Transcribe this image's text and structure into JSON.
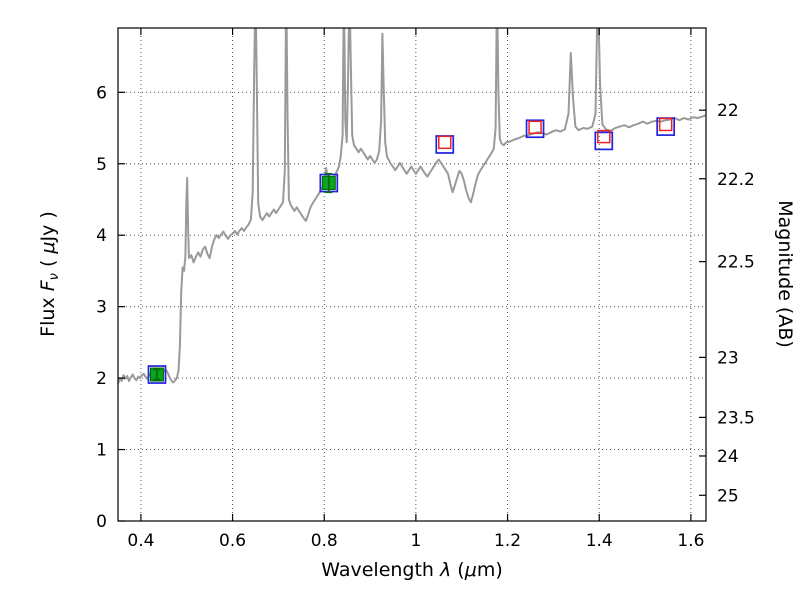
{
  "labels": {
    "xlabel_prefix": "Wavelength  ",
    "xlabel_lambda": "λ",
    "xlabel_open": " (",
    "xlabel_mu": "μ",
    "xlabel_close": "m)",
    "ylabel_prefix": "Flux  ",
    "ylabel_F": "F",
    "ylabel_nu": "ν",
    "ylabel_open": "  ( ",
    "ylabel_mu": "μ",
    "ylabel_close": "Jy )",
    "ylabel_right": "Magnitude (AB)"
  },
  "chart_data": {
    "type": "line+scatter",
    "title": "",
    "xlabel": "Wavelength λ (μm)",
    "ylabel": "Flux Fν ( μJy )",
    "y2label": "Magnitude (AB)",
    "xlim": [
      0.35,
      1.633
    ],
    "ylim": [
      0,
      6.9
    ],
    "grid": true,
    "legend": false,
    "x_ticks": [
      "0.4",
      "0.6",
      "0.8",
      "1",
      "1.2",
      "1.4",
      "1.6"
    ],
    "x_tick_values": [
      0.4,
      0.6,
      0.8,
      1.0,
      1.2,
      1.4,
      1.6
    ],
    "y_ticks": [
      "0",
      "1",
      "2",
      "3",
      "4",
      "5",
      "6"
    ],
    "y_tick_values": [
      0,
      1,
      2,
      3,
      4,
      5,
      6
    ],
    "y2_ticks": [
      {
        "label": "22",
        "flux": 5.75
      },
      {
        "label": "22.2",
        "flux": 4.79
      },
      {
        "label": "22.5",
        "flux": 3.63
      },
      {
        "label": "23",
        "flux": 2.29
      },
      {
        "label": "23.5",
        "flux": 1.45
      },
      {
        "label": "24",
        "flux": 0.91
      },
      {
        "label": "25",
        "flux": 0.36
      }
    ],
    "spectrum": {
      "name": "model-spectrum",
      "color": "#9a9a9a",
      "line_width": 2,
      "points": [
        [
          0.35,
          1.92
        ],
        [
          0.354,
          2.0
        ],
        [
          0.358,
          1.96
        ],
        [
          0.362,
          2.04
        ],
        [
          0.366,
          1.99
        ],
        [
          0.37,
          2.03
        ],
        [
          0.374,
          1.96
        ],
        [
          0.378,
          2.01
        ],
        [
          0.382,
          2.05
        ],
        [
          0.386,
          2.0
        ],
        [
          0.39,
          1.97
        ],
        [
          0.394,
          2.02
        ],
        [
          0.398,
          2.0
        ],
        [
          0.402,
          2.04
        ],
        [
          0.406,
          2.06
        ],
        [
          0.41,
          2.02
        ],
        [
          0.414,
          1.99
        ],
        [
          0.418,
          2.04
        ],
        [
          0.422,
          2.08
        ],
        [
          0.426,
          2.1
        ],
        [
          0.43,
          2.06
        ],
        [
          0.434,
          2.08
        ],
        [
          0.438,
          2.11
        ],
        [
          0.442,
          2.07
        ],
        [
          0.446,
          2.05
        ],
        [
          0.45,
          2.1
        ],
        [
          0.454,
          2.12
        ],
        [
          0.458,
          2.08
        ],
        [
          0.462,
          2.02
        ],
        [
          0.466,
          1.97
        ],
        [
          0.47,
          1.94
        ],
        [
          0.474,
          1.96
        ],
        [
          0.478,
          2.0
        ],
        [
          0.482,
          2.1
        ],
        [
          0.485,
          2.45
        ],
        [
          0.488,
          3.2
        ],
        [
          0.491,
          3.55
        ],
        [
          0.494,
          3.5
        ],
        [
          0.497,
          3.7
        ],
        [
          0.499,
          4.45
        ],
        [
          0.501,
          4.8
        ],
        [
          0.503,
          4.1
        ],
        [
          0.505,
          3.68
        ],
        [
          0.51,
          3.72
        ],
        [
          0.515,
          3.62
        ],
        [
          0.52,
          3.7
        ],
        [
          0.525,
          3.76
        ],
        [
          0.53,
          3.7
        ],
        [
          0.535,
          3.8
        ],
        [
          0.54,
          3.84
        ],
        [
          0.545,
          3.74
        ],
        [
          0.55,
          3.68
        ],
        [
          0.555,
          3.84
        ],
        [
          0.56,
          3.94
        ],
        [
          0.565,
          4.0
        ],
        [
          0.57,
          3.96
        ],
        [
          0.575,
          4.01
        ],
        [
          0.58,
          4.05
        ],
        [
          0.585,
          3.99
        ],
        [
          0.59,
          3.95
        ],
        [
          0.595,
          4.0
        ],
        [
          0.6,
          4.02
        ],
        [
          0.605,
          4.06
        ],
        [
          0.61,
          4.01
        ],
        [
          0.615,
          4.06
        ],
        [
          0.62,
          4.1
        ],
        [
          0.625,
          4.06
        ],
        [
          0.63,
          4.11
        ],
        [
          0.635,
          4.15
        ],
        [
          0.64,
          4.22
        ],
        [
          0.644,
          4.6
        ],
        [
          0.647,
          6.2
        ],
        [
          0.65,
          7.5
        ],
        [
          0.653,
          6.0
        ],
        [
          0.656,
          4.45
        ],
        [
          0.66,
          4.26
        ],
        [
          0.665,
          4.21
        ],
        [
          0.67,
          4.26
        ],
        [
          0.675,
          4.31
        ],
        [
          0.68,
          4.26
        ],
        [
          0.685,
          4.31
        ],
        [
          0.69,
          4.36
        ],
        [
          0.695,
          4.31
        ],
        [
          0.7,
          4.36
        ],
        [
          0.705,
          4.41
        ],
        [
          0.71,
          4.46
        ],
        [
          0.714,
          4.9
        ],
        [
          0.717,
          7.5
        ],
        [
          0.72,
          5.6
        ],
        [
          0.723,
          4.5
        ],
        [
          0.727,
          4.42
        ],
        [
          0.731,
          4.38
        ],
        [
          0.735,
          4.34
        ],
        [
          0.74,
          4.39
        ],
        [
          0.745,
          4.34
        ],
        [
          0.75,
          4.29
        ],
        [
          0.755,
          4.24
        ],
        [
          0.76,
          4.2
        ],
        [
          0.765,
          4.29
        ],
        [
          0.77,
          4.39
        ],
        [
          0.775,
          4.45
        ],
        [
          0.78,
          4.5
        ],
        [
          0.785,
          4.55
        ],
        [
          0.79,
          4.6
        ],
        [
          0.795,
          4.66
        ],
        [
          0.8,
          4.72
        ],
        [
          0.804,
          4.94
        ],
        [
          0.808,
          4.78
        ],
        [
          0.812,
          4.8
        ],
        [
          0.816,
          4.74
        ],
        [
          0.82,
          4.8
        ],
        [
          0.824,
          4.85
        ],
        [
          0.828,
          4.9
        ],
        [
          0.832,
          4.96
        ],
        [
          0.836,
          5.1
        ],
        [
          0.84,
          5.4
        ],
        [
          0.843,
          7.5
        ],
        [
          0.846,
          5.6
        ],
        [
          0.849,
          5.3
        ],
        [
          0.852,
          6.2
        ],
        [
          0.855,
          7.5
        ],
        [
          0.858,
          6.4
        ],
        [
          0.861,
          5.4
        ],
        [
          0.865,
          5.26
        ],
        [
          0.87,
          5.21
        ],
        [
          0.875,
          5.16
        ],
        [
          0.88,
          5.21
        ],
        [
          0.885,
          5.16
        ],
        [
          0.89,
          5.11
        ],
        [
          0.895,
          5.06
        ],
        [
          0.9,
          5.11
        ],
        [
          0.905,
          5.06
        ],
        [
          0.91,
          5.01
        ],
        [
          0.915,
          5.06
        ],
        [
          0.92,
          5.18
        ],
        [
          0.924,
          5.6
        ],
        [
          0.927,
          6.82
        ],
        [
          0.93,
          6.0
        ],
        [
          0.933,
          5.3
        ],
        [
          0.937,
          5.1
        ],
        [
          0.941,
          5.05
        ],
        [
          0.945,
          5.0
        ],
        [
          0.95,
          4.96
        ],
        [
          0.955,
          4.91
        ],
        [
          0.96,
          4.96
        ],
        [
          0.965,
          5.01
        ],
        [
          0.97,
          4.96
        ],
        [
          0.975,
          4.91
        ],
        [
          0.98,
          4.86
        ],
        [
          0.985,
          4.91
        ],
        [
          0.99,
          4.96
        ],
        [
          0.995,
          4.91
        ],
        [
          1.0,
          4.86
        ],
        [
          1.005,
          4.91
        ],
        [
          1.01,
          4.96
        ],
        [
          1.015,
          4.91
        ],
        [
          1.02,
          4.86
        ],
        [
          1.025,
          4.82
        ],
        [
          1.03,
          4.87
        ],
        [
          1.035,
          4.92
        ],
        [
          1.04,
          4.97
        ],
        [
          1.045,
          5.02
        ],
        [
          1.05,
          5.06
        ],
        [
          1.055,
          5.01
        ],
        [
          1.06,
          4.96
        ],
        [
          1.065,
          4.91
        ],
        [
          1.07,
          4.86
        ],
        [
          1.075,
          4.72
        ],
        [
          1.08,
          4.6
        ],
        [
          1.085,
          4.7
        ],
        [
          1.09,
          4.8
        ],
        [
          1.095,
          4.9
        ],
        [
          1.1,
          4.86
        ],
        [
          1.105,
          4.76
        ],
        [
          1.11,
          4.62
        ],
        [
          1.115,
          4.52
        ],
        [
          1.12,
          4.46
        ],
        [
          1.125,
          4.58
        ],
        [
          1.13,
          4.72
        ],
        [
          1.135,
          4.84
        ],
        [
          1.14,
          4.9
        ],
        [
          1.145,
          4.95
        ],
        [
          1.15,
          5.0
        ],
        [
          1.155,
          5.05
        ],
        [
          1.16,
          5.1
        ],
        [
          1.165,
          5.15
        ],
        [
          1.17,
          5.21
        ],
        [
          1.174,
          5.5
        ],
        [
          1.177,
          7.5
        ],
        [
          1.18,
          6.0
        ],
        [
          1.183,
          5.35
        ],
        [
          1.187,
          5.28
        ],
        [
          1.192,
          5.26
        ],
        [
          1.197,
          5.3
        ],
        [
          1.205,
          5.31
        ],
        [
          1.215,
          5.34
        ],
        [
          1.225,
          5.36
        ],
        [
          1.235,
          5.39
        ],
        [
          1.245,
          5.4
        ],
        [
          1.255,
          5.42
        ],
        [
          1.265,
          5.44
        ],
        [
          1.275,
          5.43
        ],
        [
          1.285,
          5.41
        ],
        [
          1.295,
          5.44
        ],
        [
          1.305,
          5.47
        ],
        [
          1.315,
          5.45
        ],
        [
          1.325,
          5.48
        ],
        [
          1.333,
          5.7
        ],
        [
          1.338,
          6.55
        ],
        [
          1.343,
          5.9
        ],
        [
          1.348,
          5.52
        ],
        [
          1.355,
          5.47
        ],
        [
          1.365,
          5.5
        ],
        [
          1.375,
          5.49
        ],
        [
          1.385,
          5.52
        ],
        [
          1.392,
          5.7
        ],
        [
          1.397,
          7.5
        ],
        [
          1.402,
          6.1
        ],
        [
          1.407,
          5.55
        ],
        [
          1.415,
          5.48
        ],
        [
          1.425,
          5.46
        ],
        [
          1.435,
          5.5
        ],
        [
          1.445,
          5.52
        ],
        [
          1.455,
          5.54
        ],
        [
          1.465,
          5.51
        ],
        [
          1.475,
          5.54
        ],
        [
          1.485,
          5.56
        ],
        [
          1.495,
          5.59
        ],
        [
          1.505,
          5.56
        ],
        [
          1.515,
          5.59
        ],
        [
          1.525,
          5.6
        ],
        [
          1.535,
          5.59
        ],
        [
          1.545,
          5.61
        ],
        [
          1.555,
          5.62
        ],
        [
          1.565,
          5.64
        ],
        [
          1.575,
          5.61
        ],
        [
          1.585,
          5.64
        ],
        [
          1.595,
          5.62
        ],
        [
          1.605,
          5.65
        ],
        [
          1.615,
          5.64
        ],
        [
          1.625,
          5.66
        ],
        [
          1.633,
          5.68
        ]
      ]
    },
    "markers": [
      {
        "name": "model-band-flux",
        "marker": "open-square",
        "color": "#2222dd",
        "stroke_width": 1.7,
        "size": 17,
        "points": [
          [
            0.435,
            2.05
          ],
          [
            0.81,
            4.73
          ],
          [
            1.063,
            5.27
          ],
          [
            1.26,
            5.49
          ],
          [
            1.41,
            5.32
          ],
          [
            1.545,
            5.52
          ]
        ]
      },
      {
        "name": "predicted-ir-flux",
        "marker": "open-square",
        "color": "#ee2222",
        "stroke_width": 1.5,
        "size": 12,
        "points": [
          [
            1.063,
            5.3
          ],
          [
            1.26,
            5.51
          ],
          [
            1.41,
            5.38
          ],
          [
            1.545,
            5.55
          ]
        ]
      },
      {
        "name": "observed-flux",
        "marker": "filled-square",
        "color": "#0aa31e",
        "edge": "#006600",
        "error_color": "#046b10",
        "size": 13,
        "points": [
          [
            0.435,
            2.05
          ],
          [
            0.81,
            4.73
          ]
        ],
        "yerr": [
          0.07,
          0.13
        ]
      }
    ]
  }
}
